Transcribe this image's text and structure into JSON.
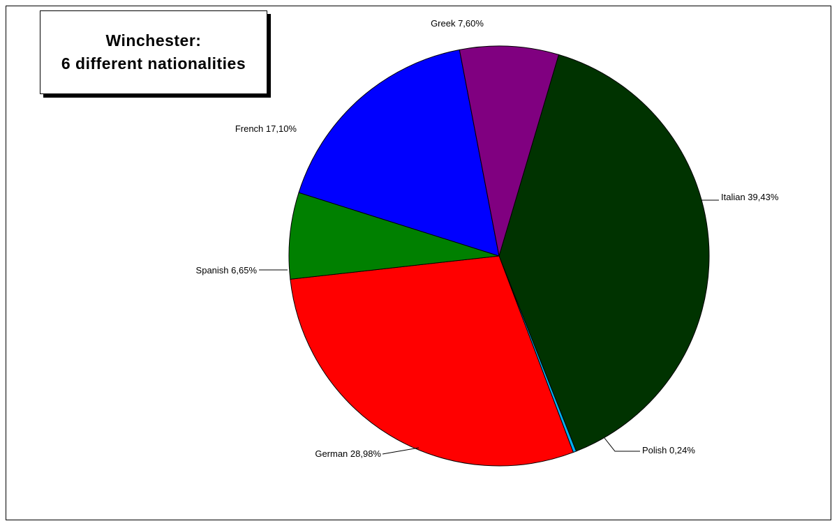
{
  "chart_data": {
    "type": "pie",
    "title_line1": "Winchester:",
    "title_line2": "6 different nationalities",
    "slices": [
      {
        "name": "Italian",
        "label": "Italian 39,43%",
        "value": 39.43,
        "color": "#003300"
      },
      {
        "name": "Polish",
        "label": "Polish 0,24%",
        "value": 0.24,
        "color": "#00b0f0"
      },
      {
        "name": "German",
        "label": "German 28,98%",
        "value": 28.98,
        "color": "#ff0000"
      },
      {
        "name": "Spanish",
        "label": "Spanish 6,65%",
        "value": 6.65,
        "color": "#008000"
      },
      {
        "name": "French",
        "label": "French 17,10%",
        "value": 17.1,
        "color": "#0000ff"
      },
      {
        "name": "Greek",
        "label": "Greek 7,60%",
        "value": 7.6,
        "color": "#800080"
      }
    ],
    "legend": "none"
  }
}
